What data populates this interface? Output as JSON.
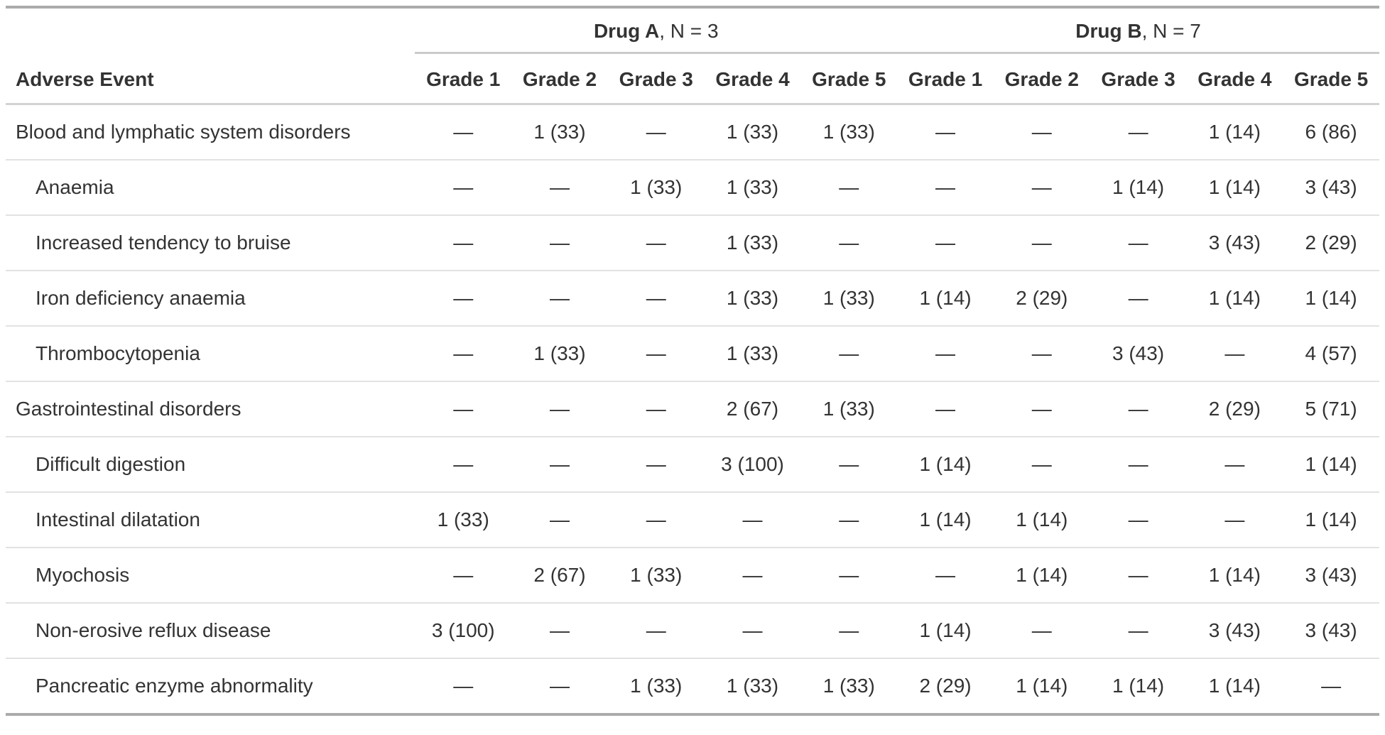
{
  "chart_data": {
    "type": "table",
    "row_header": "Adverse Event",
    "spanners": [
      {
        "name": "Drug A",
        "suffix": ", N = 3"
      },
      {
        "name": "Drug B",
        "suffix": ", N = 7"
      }
    ],
    "grade_columns": [
      "Grade 1",
      "Grade 2",
      "Grade 3",
      "Grade 4",
      "Grade 5"
    ],
    "empty_marker": "—",
    "rows": [
      {
        "label": "Blood and lymphatic system disorders",
        "indent": false,
        "drug_a": [
          "—",
          "1 (33)",
          "—",
          "1 (33)",
          "1 (33)"
        ],
        "drug_b": [
          "—",
          "—",
          "—",
          "1 (14)",
          "6 (86)"
        ]
      },
      {
        "label": "Anaemia",
        "indent": true,
        "drug_a": [
          "—",
          "—",
          "1 (33)",
          "1 (33)",
          "—"
        ],
        "drug_b": [
          "—",
          "—",
          "1 (14)",
          "1 (14)",
          "3 (43)"
        ]
      },
      {
        "label": "Increased tendency to bruise",
        "indent": true,
        "drug_a": [
          "—",
          "—",
          "—",
          "1 (33)",
          "—"
        ],
        "drug_b": [
          "—",
          "—",
          "—",
          "3 (43)",
          "2 (29)"
        ]
      },
      {
        "label": "Iron deficiency anaemia",
        "indent": true,
        "drug_a": [
          "—",
          "—",
          "—",
          "1 (33)",
          "1 (33)"
        ],
        "drug_b": [
          "1 (14)",
          "2 (29)",
          "—",
          "1 (14)",
          "1 (14)"
        ]
      },
      {
        "label": "Thrombocytopenia",
        "indent": true,
        "drug_a": [
          "—",
          "1 (33)",
          "—",
          "1 (33)",
          "—"
        ],
        "drug_b": [
          "—",
          "—",
          "3 (43)",
          "—",
          "4 (57)"
        ]
      },
      {
        "label": "Gastrointestinal disorders",
        "indent": false,
        "drug_a": [
          "—",
          "—",
          "—",
          "2 (67)",
          "1 (33)"
        ],
        "drug_b": [
          "—",
          "—",
          "—",
          "2 (29)",
          "5 (71)"
        ]
      },
      {
        "label": "Difficult digestion",
        "indent": true,
        "drug_a": [
          "—",
          "—",
          "—",
          "3 (100)",
          "—"
        ],
        "drug_b": [
          "1 (14)",
          "—",
          "—",
          "—",
          "1 (14)"
        ]
      },
      {
        "label": "Intestinal dilatation",
        "indent": true,
        "drug_a": [
          "1 (33)",
          "—",
          "—",
          "—",
          "—"
        ],
        "drug_b": [
          "1 (14)",
          "1 (14)",
          "—",
          "—",
          "1 (14)"
        ]
      },
      {
        "label": "Myochosis",
        "indent": true,
        "drug_a": [
          "—",
          "2 (67)",
          "1 (33)",
          "—",
          "—"
        ],
        "drug_b": [
          "—",
          "1 (14)",
          "—",
          "1 (14)",
          "3 (43)"
        ]
      },
      {
        "label": "Non-erosive reflux disease",
        "indent": true,
        "drug_a": [
          "3 (100)",
          "—",
          "—",
          "—",
          "—"
        ],
        "drug_b": [
          "1 (14)",
          "—",
          "—",
          "3 (43)",
          "3 (43)"
        ]
      },
      {
        "label": "Pancreatic enzyme abnormality",
        "indent": true,
        "drug_a": [
          "—",
          "—",
          "1 (33)",
          "1 (33)",
          "1 (33)"
        ],
        "drug_b": [
          "2 (29)",
          "1 (14)",
          "1 (14)",
          "1 (14)",
          "—"
        ]
      }
    ]
  },
  "colors": {
    "text": "#333333",
    "border_outer": "#ABABAB",
    "border_header": "#D3D3D3",
    "border_row": "#E2E2E2",
    "background": "#FFFFFF"
  }
}
